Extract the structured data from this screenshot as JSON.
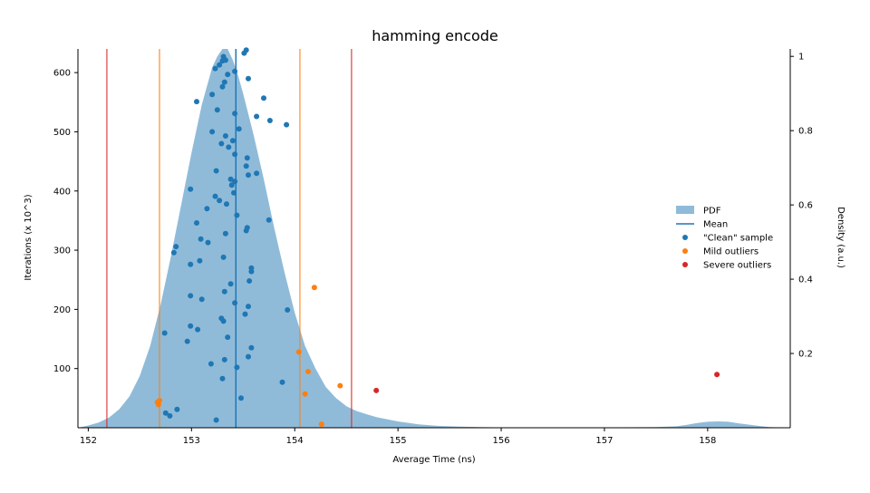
{
  "chart_data": {
    "type": "scatter",
    "title": "hamming encode",
    "xlabel": "Average Time (ns)",
    "ylabel": "Iterations (x 10^3)",
    "y2label": "Density (a.u.)",
    "xlim": [
      151.9,
      158.8
    ],
    "ylim": [
      0,
      640
    ],
    "y2lim": [
      0,
      1.02
    ],
    "x_ticks": [
      152,
      153,
      154,
      155,
      156,
      157,
      158
    ],
    "y_ticks": [
      100,
      200,
      300,
      400,
      500,
      600
    ],
    "y2_ticks": [
      0.2,
      0.4,
      0.6,
      0.8,
      1
    ],
    "grid": false,
    "legend_position": "right",
    "legend": [
      {
        "label": "PDF",
        "kind": "patch",
        "color": "#1f77b4"
      },
      {
        "label": "Mean",
        "kind": "line",
        "color": "#1f77b4"
      },
      {
        "label": "\"Clean\" sample",
        "kind": "dot",
        "color": "#1f77b4"
      },
      {
        "label": "Mild outliers",
        "kind": "dot",
        "color": "#ff7f0e"
      },
      {
        "label": "Severe outliers",
        "kind": "dot",
        "color": "#d62728"
      }
    ],
    "colors": {
      "pdf_fill": "#1f77b4",
      "mean": "#1f77b4",
      "clean": "#1f77b4",
      "mild": "#ff7f0e",
      "severe": "#d62728"
    },
    "mean": 153.43,
    "mild_fences": [
      152.69,
      154.05
    ],
    "severe_fences": [
      152.18,
      154.55
    ],
    "pdf": {
      "x": [
        151.9,
        152.0,
        152.1,
        152.2,
        152.3,
        152.4,
        152.5,
        152.6,
        152.7,
        152.8,
        152.9,
        153.0,
        153.1,
        153.2,
        153.25,
        153.3,
        153.35,
        153.4,
        153.45,
        153.5,
        153.6,
        153.7,
        153.8,
        153.9,
        154.0,
        154.1,
        154.2,
        154.3,
        154.4,
        154.5,
        154.6,
        154.7,
        154.8,
        155.0,
        155.2,
        155.4,
        155.6,
        155.8,
        156.0,
        156.5,
        157.0,
        157.5,
        157.7,
        157.8,
        157.9,
        158.0,
        158.1,
        158.2,
        158.3,
        158.5,
        158.6,
        158.8
      ],
      "density": [
        0.0,
        0.006,
        0.014,
        0.027,
        0.05,
        0.085,
        0.14,
        0.22,
        0.33,
        0.46,
        0.6,
        0.74,
        0.87,
        0.97,
        1.0,
        1.02,
        1.02,
        0.99,
        0.95,
        0.9,
        0.79,
        0.67,
        0.54,
        0.42,
        0.31,
        0.22,
        0.16,
        0.11,
        0.08,
        0.058,
        0.045,
        0.036,
        0.028,
        0.017,
        0.009,
        0.005,
        0.003,
        0.002,
        0.001,
        0.001,
        0.001,
        0.002,
        0.004,
        0.008,
        0.013,
        0.016,
        0.017,
        0.016,
        0.012,
        0.005,
        0.002,
        0.0
      ]
    },
    "series": [
      {
        "name": "\"Clean\" sample",
        "x": [
          153.51,
          153.53,
          153.31,
          153.3,
          153.27,
          153.33,
          153.23,
          153.42,
          153.35,
          153.32,
          153.55,
          153.05,
          153.7,
          153.2,
          153.3,
          153.25,
          153.42,
          153.63,
          153.76,
          153.92,
          153.46,
          153.2,
          153.33,
          153.4,
          153.29,
          153.36,
          153.42,
          153.54,
          153.53,
          153.24,
          153.55,
          153.38,
          153.42,
          153.63,
          153.39,
          152.99,
          153.41,
          153.23,
          153.27,
          153.34,
          153.15,
          153.44,
          153.75,
          153.54,
          153.53,
          153.33,
          153.05,
          153.16,
          152.85,
          152.83,
          153.09,
          153.58,
          153.31,
          152.99,
          153.08,
          153.38,
          153.58,
          153.56,
          153.32,
          152.99,
          153.1,
          153.42,
          153.55,
          153.93,
          153.52,
          152.99,
          153.31,
          153.29,
          153.06,
          152.74,
          153.35,
          152.96,
          153.58,
          153.55,
          153.32,
          153.19,
          153.44,
          153.88,
          153.3,
          153.48,
          152.86,
          152.75,
          152.79,
          153.24
        ],
        "y": [
          633,
          638,
          627,
          620,
          613,
          621,
          607,
          602,
          597,
          584,
          590,
          551,
          557,
          563,
          576,
          537,
          531,
          526,
          519,
          512,
          505,
          500,
          493,
          485,
          480,
          474,
          462,
          456,
          442,
          434,
          427,
          420,
          416,
          430,
          410,
          403,
          397,
          391,
          384,
          378,
          370,
          359,
          351,
          338,
          333,
          328,
          346,
          313,
          306,
          296,
          319,
          270,
          288,
          276,
          282,
          243,
          264,
          248,
          230,
          223,
          217,
          211,
          205,
          199,
          192,
          172,
          180,
          185,
          166,
          160,
          153,
          146,
          135,
          120,
          115,
          108,
          102,
          77,
          83,
          50,
          31,
          25,
          20,
          13
        ]
      },
      {
        "name": "Mild outliers",
        "x": [
          152.67,
          152.68,
          152.69,
          154.19,
          154.04,
          154.13,
          154.1,
          154.44,
          154.26
        ],
        "y": [
          43,
          39,
          46,
          237,
          128,
          95,
          57,
          71,
          6
        ]
      },
      {
        "name": "Severe outliers",
        "x": [
          154.79,
          158.09
        ],
        "y": [
          63,
          90
        ]
      }
    ]
  }
}
